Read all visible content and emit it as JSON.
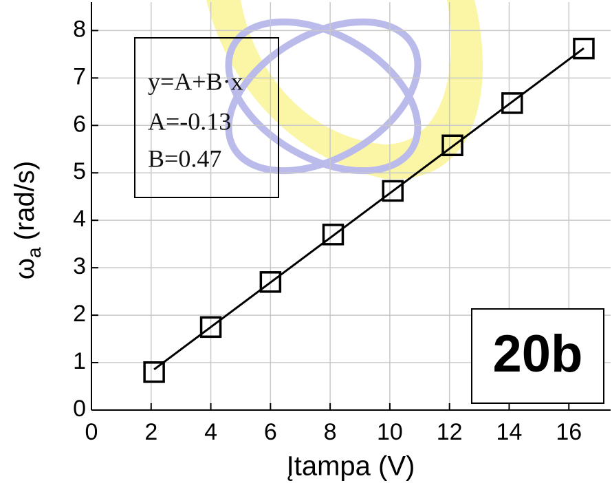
{
  "chart_data": {
    "type": "scatter",
    "xlabel": "Įtampa (V)",
    "ylabel": {
      "symbol": "ω",
      "subscript": "a",
      "unit": "(rad/s)"
    },
    "x": [
      2.1,
      4.0,
      6.0,
      8.1,
      10.1,
      12.1,
      14.1,
      16.5
    ],
    "values": [
      0.8,
      1.75,
      2.7,
      3.7,
      4.62,
      5.58,
      6.47,
      7.62
    ],
    "color": "#000000",
    "fit": {
      "intercept": -0.13,
      "slope": 0.47
    },
    "fit_label": [
      "y=A+B·x",
      "A=-0.13",
      "B=0.47"
    ],
    "badge": "20b",
    "xlim": [
      0,
      17.4
    ],
    "xticks": [
      0,
      2,
      4,
      6,
      8,
      10,
      12,
      14,
      16
    ],
    "ylim": [
      0,
      8.6
    ],
    "yticks": [
      0,
      1,
      2,
      3,
      4,
      5,
      6,
      7,
      8
    ],
    "grid": true
  }
}
